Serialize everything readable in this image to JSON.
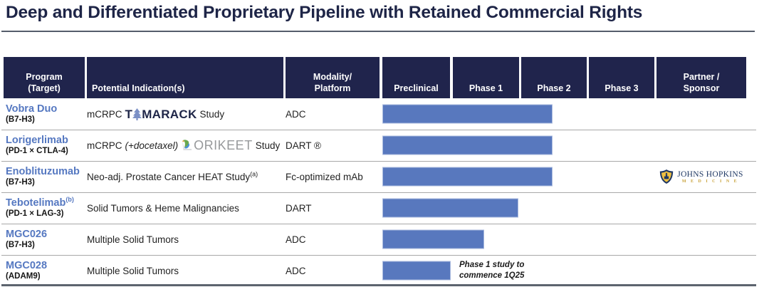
{
  "title": "Deep and Differentiated Proprietary Pipeline with Retained Commercial Rights",
  "colors": {
    "header_navy": "#20244c",
    "title_navy": "#1e2547",
    "program_blue": "#5578c1",
    "bar_fill": "#5878be",
    "bar_border": "#a9bade",
    "jhu_navy": "#1f3864",
    "jhu_gold": "#c9a33c"
  },
  "header": {
    "program_l1": "Program",
    "program_l2": "(Target)",
    "indication": "Potential Indication(s)",
    "modality_l1": "Modality/",
    "modality_l2": "Platform",
    "preclinical": "Preclinical",
    "phase1": "Phase 1",
    "phase2": "Phase 2",
    "phase3": "Phase 3",
    "partner_l1": "Partner /",
    "partner_l2": "Sponsor"
  },
  "rows": [
    {
      "program": "Vobra Duo",
      "target": "(B7-H3)",
      "indication_prefix": "mCRPC",
      "logo_pre": "T",
      "logo_post": "MARACK",
      "study_suffix": "Study",
      "modality": "ADC"
    },
    {
      "program": "Lorigerlimab",
      "target": "(PD-1 × CTLA-4)",
      "indication_prefix": "mCRPC",
      "indication_italic": "(+docetaxel)",
      "logo_post": "ORIKEET",
      "study_suffix": "Study",
      "modality": "DART ®"
    },
    {
      "program": "Enoblituzumab",
      "target": "(B7-H3)",
      "indication": "Neo-adj. Prostate Cancer HEAT Study",
      "indication_sup": "(a)",
      "modality": "Fc-optimized mAb",
      "partner_name": "JOHNS HOPKINS",
      "partner_sub": "M E D I C I N E"
    },
    {
      "program": "Tebotelimab",
      "program_sup": "(b)",
      "target": "(PD-1 × LAG-3)",
      "indication": "Solid Tumors & Heme Malignancies",
      "modality": "DART"
    },
    {
      "program": "MGC026",
      "target": "(B7-H3)",
      "indication": "Multiple Solid Tumors",
      "modality": "ADC"
    },
    {
      "program": "MGC028",
      "target": "(ADAM9)",
      "indication": "Multiple Solid Tumors",
      "modality": "ADC",
      "annotation_l1": "Phase 1 study to",
      "annotation_l2": "commence 1Q25"
    }
  ],
  "chart_data": {
    "type": "bar",
    "orientation": "horizontal",
    "title": "Clinical development stage per program",
    "categories": [
      "Vobra Duo",
      "Lorigerlimab",
      "Enoblituzumab",
      "Tebotelimab",
      "MGC026",
      "MGC028"
    ],
    "values": [
      2.5,
      2.5,
      2.5,
      2.0,
      1.5,
      1.0
    ],
    "value_scale": "phase units from start of Preclinical: 1 = Preclinical complete, 2 = Phase 1 complete, 3 = Phase 2 complete, 4 = Phase 3 complete",
    "phase_columns": [
      "Preclinical",
      "Phase 1",
      "Phase 2",
      "Phase 3"
    ],
    "xlim": [
      0,
      4
    ],
    "bar_color": "#5878be",
    "annotations": [
      {
        "category": "MGC028",
        "text": "Phase 1 study to commence 1Q25"
      }
    ]
  }
}
